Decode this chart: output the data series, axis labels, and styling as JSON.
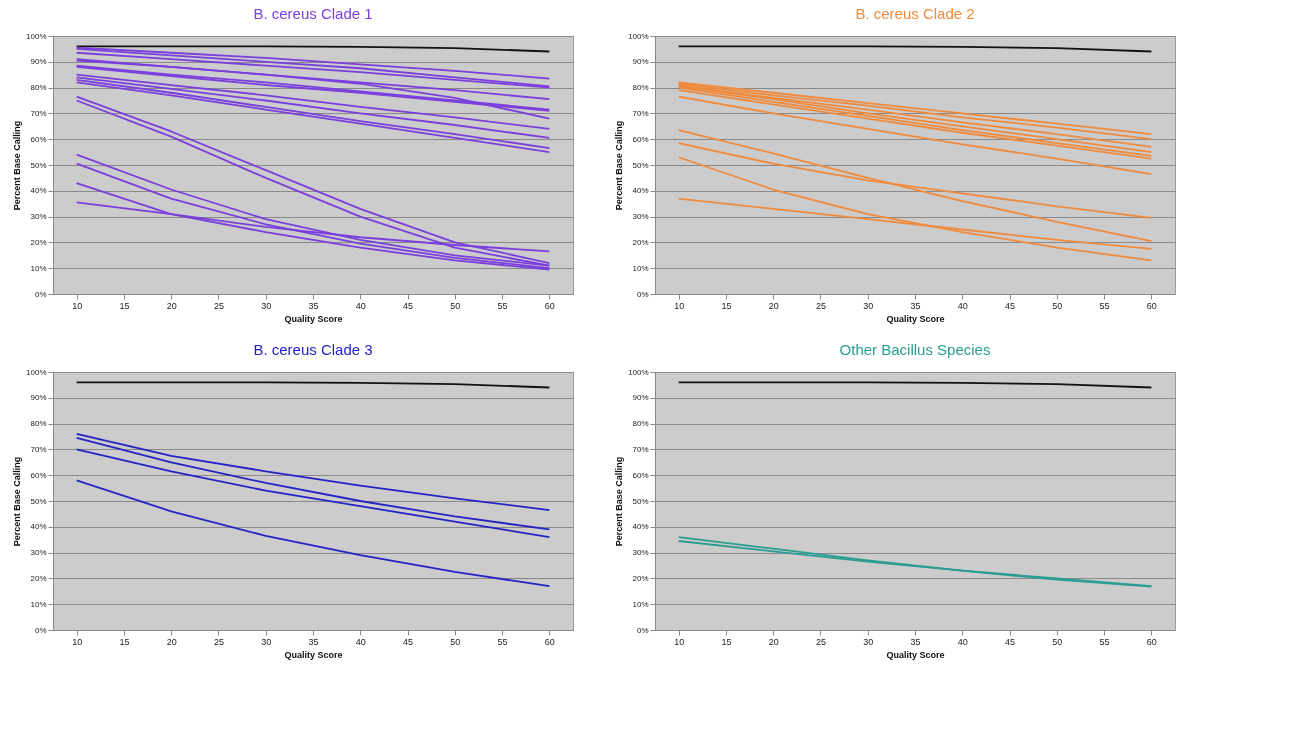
{
  "chart_data": [
    {
      "type": "line",
      "title": "B. cereus Clade 1",
      "xlabel": "Quality Score",
      "ylabel": "Percent Base Calling",
      "x": [
        10,
        20,
        30,
        40,
        50,
        60
      ],
      "xlim": [
        7.5,
        62.5
      ],
      "xticks": [
        10,
        15,
        20,
        25,
        30,
        35,
        40,
        45,
        50,
        55,
        60
      ],
      "ylim": [
        0,
        100
      ],
      "yticks": [
        {
          "value": 0,
          "label": "0%"
        },
        {
          "value": 10,
          "label": "10%"
        },
        {
          "value": 20,
          "label": "20%"
        },
        {
          "value": 30,
          "label": "30%"
        },
        {
          "value": 40,
          "label": "40%"
        },
        {
          "value": 50,
          "label": "50%"
        },
        {
          "value": 60,
          "label": "60%"
        },
        {
          "value": 70,
          "label": "70%"
        },
        {
          "value": 80,
          "label": "80%"
        },
        {
          "value": 90,
          "label": "90%"
        },
        {
          "value": 100,
          "label": "100%"
        }
      ],
      "grid": "y",
      "legend": false,
      "series": [
        {
          "color": "#111111",
          "values": [
            96,
            96,
            96,
            95.8,
            95.3,
            94
          ]
        },
        {
          "color": "#7a3fdc",
          "values": [
            95.5,
            93.5,
            91.5,
            89,
            86.5,
            83.5
          ]
        },
        {
          "color": "#7a3fdc",
          "values": [
            95,
            92.5,
            90,
            87.5,
            84,
            80.5
          ]
        },
        {
          "color": "#7a3fdc",
          "values": [
            93.5,
            91,
            88.5,
            86,
            83,
            80
          ]
        },
        {
          "color": "#7a3fdc",
          "values": [
            91,
            88,
            85,
            82,
            79,
            75.5
          ]
        },
        {
          "color": "#7a3fdc",
          "values": [
            90.5,
            88,
            85,
            81.5,
            76,
            68
          ]
        },
        {
          "color": "#7a3fdc",
          "values": [
            88.5,
            85,
            82,
            78.5,
            75,
            71.5
          ]
        },
        {
          "color": "#7a3fdc",
          "values": [
            88,
            84.5,
            81,
            78,
            74.5,
            71
          ]
        },
        {
          "color": "#7a3fdc",
          "values": [
            85,
            81,
            77,
            72.5,
            68.5,
            64
          ]
        },
        {
          "color": "#7a3fdc",
          "values": [
            84,
            79.5,
            75,
            70,
            65.5,
            60.5
          ]
        },
        {
          "color": "#7a3fdc",
          "values": [
            83,
            78,
            72.5,
            67,
            62,
            56.5
          ]
        },
        {
          "color": "#7a3fdc",
          "values": [
            82,
            77,
            71.5,
            66,
            60.5,
            55
          ]
        },
        {
          "color": "#7a3fdc",
          "values": [
            76.5,
            63,
            48,
            33,
            20,
            12
          ]
        },
        {
          "color": "#7a3fdc",
          "values": [
            75,
            61,
            45,
            30,
            18,
            11
          ]
        },
        {
          "color": "#7a3fdc",
          "values": [
            54,
            40.5,
            29,
            21,
            15,
            11
          ]
        },
        {
          "color": "#7a3fdc",
          "values": [
            50.5,
            37,
            27,
            19.5,
            14,
            10
          ]
        },
        {
          "color": "#7a3fdc",
          "values": [
            43,
            31,
            24,
            18,
            13,
            9.5
          ]
        },
        {
          "color": "#7a3fdc",
          "values": [
            35.5,
            31,
            26,
            22,
            19,
            16.5
          ]
        }
      ]
    },
    {
      "type": "line",
      "title": "B. cereus Clade 2",
      "xlabel": "Quality Score",
      "ylabel": "Percent Base Calling",
      "x": [
        10,
        20,
        30,
        40,
        50,
        60
      ],
      "xlim": [
        7.5,
        62.5
      ],
      "xticks": [
        10,
        15,
        20,
        25,
        30,
        35,
        40,
        45,
        50,
        55,
        60
      ],
      "ylim": [
        0,
        100
      ],
      "yticks": [
        {
          "value": 0,
          "label": "0%"
        },
        {
          "value": 10,
          "label": "10%"
        },
        {
          "value": 20,
          "label": "20%"
        },
        {
          "value": 30,
          "label": "30%"
        },
        {
          "value": 40,
          "label": "40%"
        },
        {
          "value": 50,
          "label": "50%"
        },
        {
          "value": 60,
          "label": "60%"
        },
        {
          "value": 70,
          "label": "70%"
        },
        {
          "value": 80,
          "label": "80%"
        },
        {
          "value": 90,
          "label": "90%"
        },
        {
          "value": 100,
          "label": "100%"
        }
      ],
      "grid": "y",
      "legend": false,
      "series": [
        {
          "color": "#111111",
          "values": [
            96,
            96,
            96,
            95.8,
            95.3,
            94
          ]
        },
        {
          "color": "#f08a3c",
          "values": [
            82,
            78,
            74,
            70,
            66,
            62
          ]
        },
        {
          "color": "#f08a3c",
          "values": [
            81.5,
            77,
            73,
            68.5,
            64.5,
            60
          ]
        },
        {
          "color": "#f08a3c",
          "values": [
            81,
            76,
            71.5,
            66.5,
            62,
            57
          ]
        },
        {
          "color": "#f08a3c",
          "values": [
            80.5,
            75.5,
            70,
            65,
            60,
            55
          ]
        },
        {
          "color": "#f08a3c",
          "values": [
            80,
            74.5,
            69,
            63.5,
            58.5,
            53.5
          ]
        },
        {
          "color": "#f08a3c",
          "values": [
            79,
            73.5,
            68,
            62.5,
            57.5,
            52.5
          ]
        },
        {
          "color": "#f08a3c",
          "values": [
            76.5,
            70,
            64,
            58,
            52.5,
            46.5
          ]
        },
        {
          "color": "#f08a3c",
          "values": [
            63.5,
            54.5,
            45,
            36,
            28,
            20.5
          ]
        },
        {
          "color": "#f08a3c",
          "values": [
            58.5,
            50.5,
            44,
            39,
            34,
            29.5
          ]
        },
        {
          "color": "#f08a3c",
          "values": [
            53,
            40.5,
            31,
            24,
            18,
            13
          ]
        },
        {
          "color": "#f08a3c",
          "values": [
            37,
            33,
            29,
            25,
            21,
            17.5
          ]
        }
      ]
    },
    {
      "type": "line",
      "title": "B. cereus Clade 3",
      "xlabel": "Quality Score",
      "ylabel": "Percent Base Calling",
      "x": [
        10,
        20,
        30,
        40,
        50,
        60
      ],
      "xlim": [
        7.5,
        62.5
      ],
      "xticks": [
        10,
        15,
        20,
        25,
        30,
        35,
        40,
        45,
        50,
        55,
        60
      ],
      "ylim": [
        0,
        100
      ],
      "yticks": [
        {
          "value": 0,
          "label": "0%"
        },
        {
          "value": 10,
          "label": "10%"
        },
        {
          "value": 20,
          "label": "20%"
        },
        {
          "value": 30,
          "label": "30%"
        },
        {
          "value": 40,
          "label": "40%"
        },
        {
          "value": 50,
          "label": "50%"
        },
        {
          "value": 60,
          "label": "60%"
        },
        {
          "value": 70,
          "label": "70%"
        },
        {
          "value": 80,
          "label": "80%"
        },
        {
          "value": 90,
          "label": "90%"
        },
        {
          "value": 100,
          "label": "100%"
        }
      ],
      "grid": "y",
      "legend": false,
      "series": [
        {
          "color": "#111111",
          "values": [
            96,
            96,
            96,
            95.8,
            95.3,
            94
          ]
        },
        {
          "color": "#2424c4",
          "values": [
            76,
            67.5,
            61.5,
            56,
            51,
            46.5
          ]
        },
        {
          "color": "#2424c4",
          "values": [
            74.5,
            65,
            57,
            50,
            44,
            39
          ]
        },
        {
          "color": "#2424c4",
          "values": [
            70,
            61.5,
            54,
            48,
            42,
            36
          ]
        },
        {
          "color": "#2424c4",
          "values": [
            58,
            46,
            36.5,
            29,
            22.5,
            17
          ]
        }
      ]
    },
    {
      "type": "line",
      "title": "Other Bacillus Species",
      "xlabel": "Quality Score",
      "ylabel": "Percent Base Calling",
      "x": [
        10,
        20,
        30,
        40,
        50,
        60
      ],
      "xlim": [
        7.5,
        62.5
      ],
      "xticks": [
        10,
        15,
        20,
        25,
        30,
        35,
        40,
        45,
        50,
        55,
        60
      ],
      "ylim": [
        0,
        100
      ],
      "yticks": [
        {
          "value": 0,
          "label": "0%"
        },
        {
          "value": 10,
          "label": "10%"
        },
        {
          "value": 20,
          "label": "20%"
        },
        {
          "value": 30,
          "label": "30%"
        },
        {
          "value": 40,
          "label": "40%"
        },
        {
          "value": 50,
          "label": "50%"
        },
        {
          "value": 60,
          "label": "60%"
        },
        {
          "value": 70,
          "label": "70%"
        },
        {
          "value": 80,
          "label": "80%"
        },
        {
          "value": 90,
          "label": "90%"
        },
        {
          "value": 100,
          "label": "100%"
        }
      ],
      "grid": "y",
      "legend": false,
      "series": [
        {
          "color": "#111111",
          "values": [
            96,
            96,
            96,
            95.8,
            95.3,
            94
          ]
        },
        {
          "color": "#2a9d92",
          "values": [
            36,
            31.5,
            27,
            23,
            20,
            17
          ]
        },
        {
          "color": "#2a9d92",
          "values": [
            34.5,
            30.5,
            26.5,
            23,
            19.5,
            16.8
          ]
        }
      ]
    }
  ]
}
